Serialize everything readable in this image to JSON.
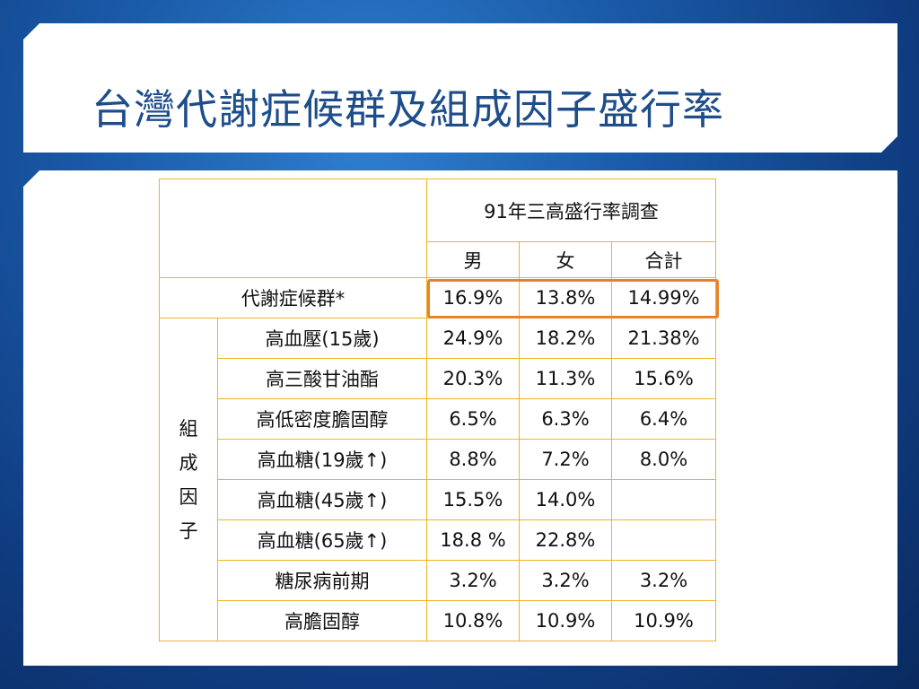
{
  "slide": {
    "title": "台灣代謝症候群及組成因子盛行率"
  },
  "table": {
    "survey_title": "91年三高盛行率調查",
    "columns": [
      "男",
      "女",
      "合計"
    ],
    "metabolic_syndrome": {
      "label": "代謝症候群*",
      "values": [
        "16.9%",
        "13.8%",
        "14.99%"
      ]
    },
    "group_label_chars": [
      "組",
      "成",
      "因",
      "子"
    ],
    "factors": [
      {
        "label": "高血壓(15歲)",
        "values": [
          "24.9%",
          "18.2%",
          "21.38%"
        ]
      },
      {
        "label": "高三酸甘油酯",
        "values": [
          "20.3%",
          "11.3%",
          "15.6%"
        ]
      },
      {
        "label": "高低密度膽固醇",
        "values": [
          "6.5%",
          "6.3%",
          "6.4%"
        ]
      },
      {
        "label": "高血糖(19歲↑)",
        "values": [
          "8.8%",
          "7.2%",
          "8.0%"
        ]
      },
      {
        "label": "高血糖(45歲↑)",
        "values": [
          "15.5%",
          "14.0%",
          ""
        ]
      },
      {
        "label": "高血糖(65歲↑)",
        "values": [
          "18.8 %",
          "22.8%",
          ""
        ]
      },
      {
        "label": "糖尿病前期",
        "values": [
          "3.2%",
          "3.2%",
          "3.2%"
        ]
      },
      {
        "label": "高膽固醇",
        "values": [
          "10.8%",
          "10.9%",
          "10.9%"
        ]
      }
    ]
  },
  "colors": {
    "title_text": "#1d4d8a",
    "table_border": "#f0b323",
    "highlight": "#e8822a",
    "background": "#1a5aa8"
  }
}
